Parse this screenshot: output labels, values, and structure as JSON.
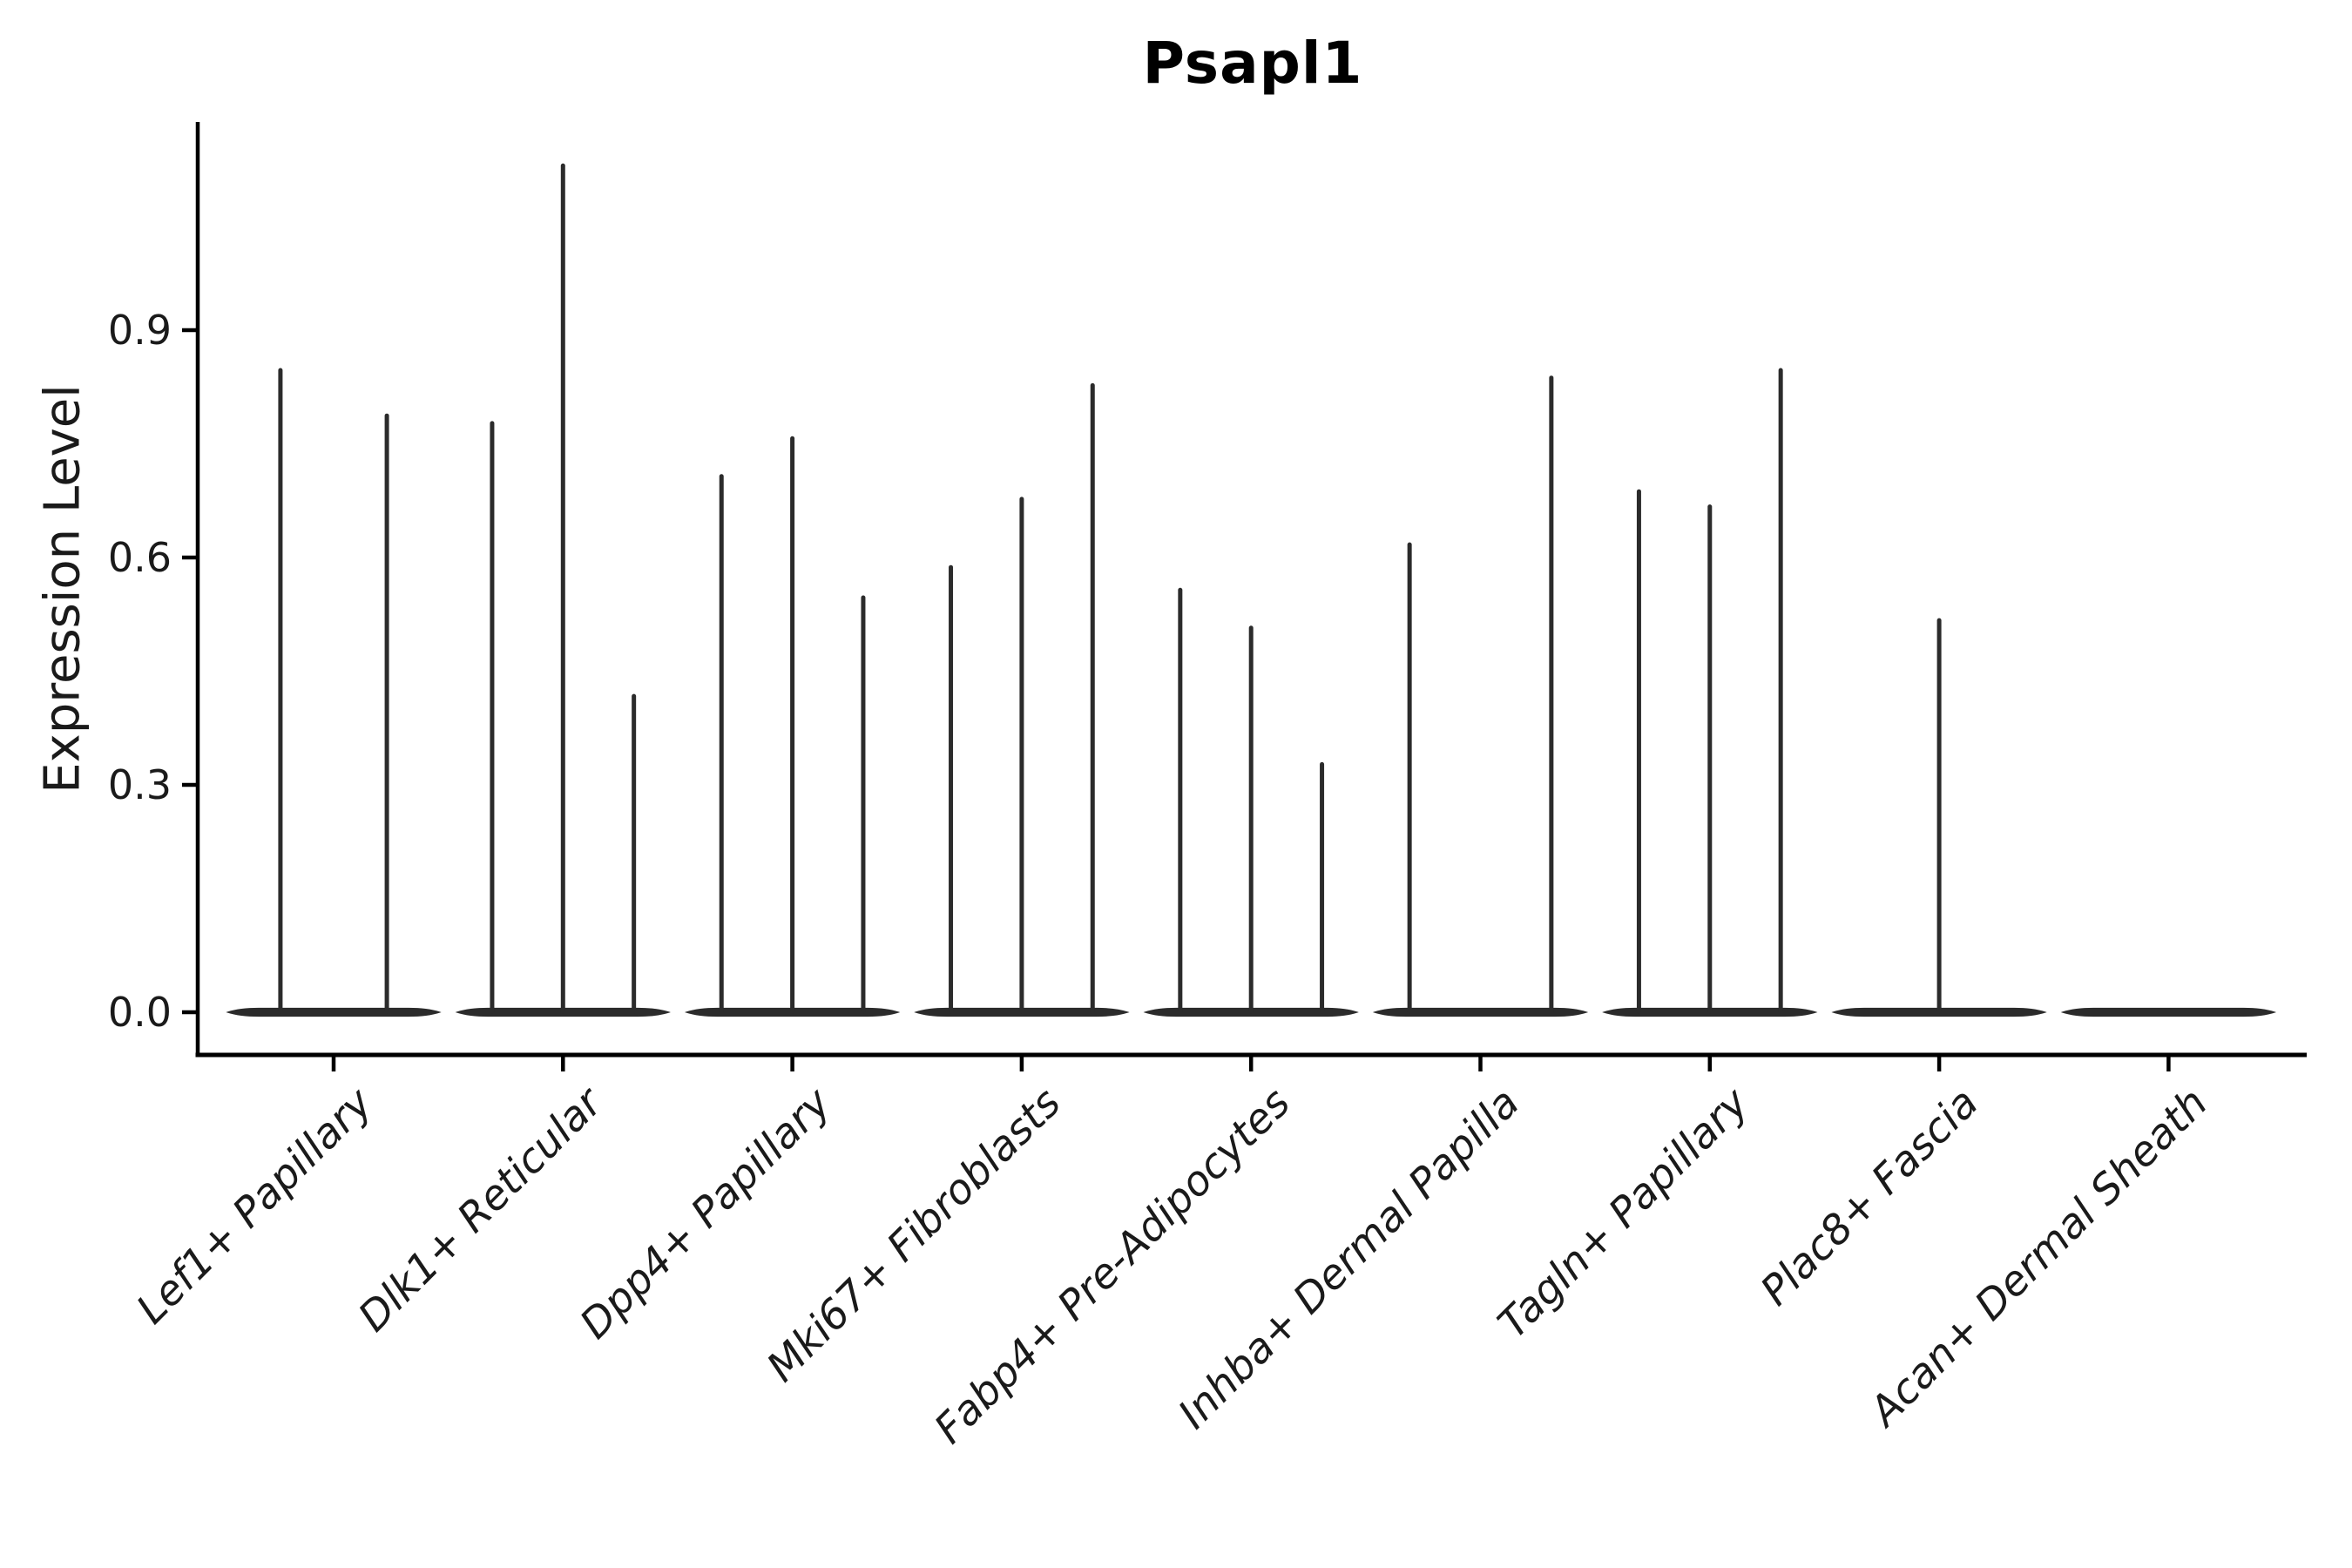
{
  "figure": {
    "title": "Psapl1",
    "background": "#ffffff",
    "ink_color": "#1a1a1a",
    "violin_color": "#2b2b2b"
  },
  "chart_data": {
    "type": "violin",
    "title": "Psapl1",
    "xlabel": "",
    "ylabel": "Expression Level",
    "ytick_labels": [
      "0.0",
      "0.3",
      "0.6",
      "0.9"
    ],
    "yticks": [
      0.0,
      0.3,
      0.6,
      0.9
    ],
    "ylim": [
      -0.06,
      1.18
    ],
    "grid": false,
    "legend": "none",
    "x_label_rotation_deg": 45,
    "x_label_style": "italic",
    "categories": [
      "Lef1+ Papillary",
      "Dlk1+ Reticular",
      "Dpp4+ Papillary",
      "Mki67+ Fibroblasts",
      "Fabp4+ Pre-Adipocytes",
      "Inhba+ Dermal Papilla",
      "Tagln+ Papillary",
      "Plac8+ Fascia",
      "Acan+ Dermal Sheath"
    ],
    "violin_description": "Each category shows dodged violins collapsed to a flat bar at expression 0 with thin vertical tails; tail entries give x offset (fraction of category spacing) and max expression reached.",
    "violins": [
      {
        "category": "Lef1+ Papillary",
        "tails": [
          {
            "offset_frac": -0.232,
            "max_expression": 0.85
          },
          {
            "offset_frac": 0.232,
            "max_expression": 0.79
          }
        ]
      },
      {
        "category": "Dlk1+ Reticular",
        "tails": [
          {
            "offset_frac": -0.309,
            "max_expression": 0.78
          },
          {
            "offset_frac": 0.0,
            "max_expression": 1.12
          },
          {
            "offset_frac": 0.309,
            "max_expression": 0.42
          }
        ]
      },
      {
        "category": "Dpp4+ Papillary",
        "tails": [
          {
            "offset_frac": -0.309,
            "max_expression": 0.71
          },
          {
            "offset_frac": 0.0,
            "max_expression": 0.76
          },
          {
            "offset_frac": 0.309,
            "max_expression": 0.55
          }
        ]
      },
      {
        "category": "Mki67+ Fibroblasts",
        "tails": [
          {
            "offset_frac": -0.309,
            "max_expression": 0.59
          },
          {
            "offset_frac": 0.0,
            "max_expression": 0.68
          },
          {
            "offset_frac": 0.309,
            "max_expression": 0.83
          }
        ]
      },
      {
        "category": "Fabp4+ Pre-Adipocytes",
        "tails": [
          {
            "offset_frac": -0.309,
            "max_expression": 0.56
          },
          {
            "offset_frac": 0.0,
            "max_expression": 0.51
          },
          {
            "offset_frac": 0.309,
            "max_expression": 0.33
          }
        ]
      },
      {
        "category": "Inhba+ Dermal Papilla",
        "tails": [
          {
            "offset_frac": -0.309,
            "max_expression": 0.62
          },
          {
            "offset_frac": 0.309,
            "max_expression": 0.84
          }
        ]
      },
      {
        "category": "Tagln+ Papillary",
        "tails": [
          {
            "offset_frac": -0.309,
            "max_expression": 0.69
          },
          {
            "offset_frac": 0.0,
            "max_expression": 0.67
          },
          {
            "offset_frac": 0.309,
            "max_expression": 0.85
          }
        ]
      },
      {
        "category": "Plac8+ Fascia",
        "tails": [
          {
            "offset_frac": 0.0,
            "max_expression": 0.52
          }
        ]
      },
      {
        "category": "Acan+ Dermal Sheath",
        "tails": []
      }
    ]
  }
}
